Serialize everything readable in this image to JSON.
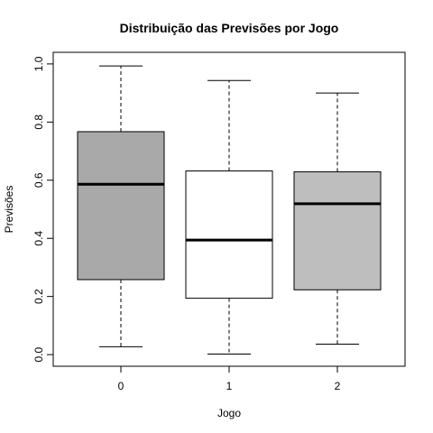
{
  "chart_data": {
    "type": "boxplot",
    "title": "Distribuição das Previsões por Jogo",
    "xlabel": "Jogo",
    "ylabel": "Previsões",
    "ylim": [
      -0.04,
      1.04
    ],
    "yticks": [
      "0.0",
      "0.2",
      "0.4",
      "0.6",
      "0.8",
      "1.0"
    ],
    "ytick_values": [
      0.0,
      0.2,
      0.4,
      0.6,
      0.8,
      1.0
    ],
    "categories": [
      "0",
      "1",
      "2"
    ],
    "boxes": [
      {
        "category": "0",
        "min": 0.027,
        "q1": 0.258,
        "median": 0.586,
        "q3": 0.767,
        "max": 0.993,
        "color": "#a9a9a9"
      },
      {
        "category": "1",
        "min": 0.002,
        "q1": 0.194,
        "median": 0.394,
        "q3": 0.632,
        "max": 0.943,
        "color": "#ffffff"
      },
      {
        "category": "2",
        "min": 0.036,
        "q1": 0.223,
        "median": 0.519,
        "q3": 0.629,
        "max": 0.9,
        "color": "#bebebe"
      }
    ],
    "grid": false,
    "legend": "none"
  }
}
